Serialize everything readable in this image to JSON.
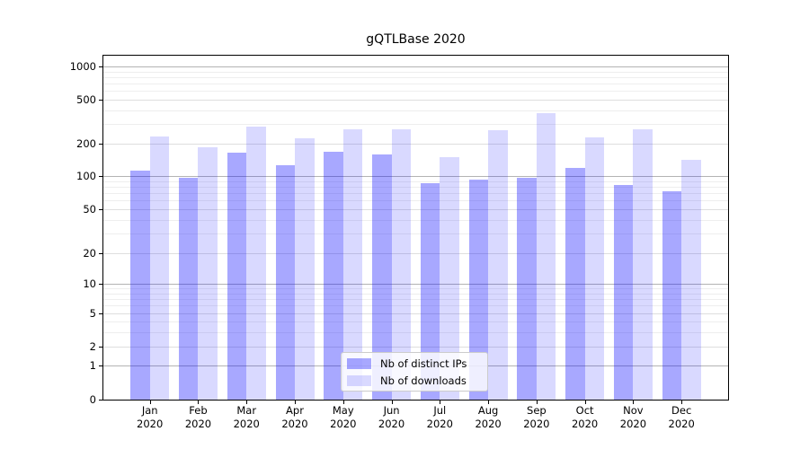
{
  "title": "gQTLBase 2020",
  "chart_data": {
    "type": "bar",
    "title": "gQTLBase 2020",
    "categories": [
      "Jan 2020",
      "Feb 2020",
      "Mar 2020",
      "Apr 2020",
      "May 2020",
      "Jun 2020",
      "Jul 2020",
      "Aug 2020",
      "Sep 2020",
      "Oct 2020",
      "Nov 2020",
      "Dec 2020"
    ],
    "x_tick_months": [
      "Jan",
      "Feb",
      "Mar",
      "Apr",
      "May",
      "Jun",
      "Jul",
      "Aug",
      "Sep",
      "Oct",
      "Nov",
      "Dec"
    ],
    "x_tick_year": "2020",
    "series": [
      {
        "name": "Nb of distinct IPs",
        "color": "rgba(0,0,255,0.34)",
        "values": [
          112,
          97,
          165,
          126,
          167,
          158,
          86,
          92,
          96,
          118,
          83,
          73
        ]
      },
      {
        "name": "Nb of downloads",
        "color": "rgba(0,0,255,0.15)",
        "values": [
          233,
          184,
          285,
          224,
          272,
          268,
          150,
          267,
          380,
          226,
          268,
          142
        ]
      }
    ],
    "yticks": [
      0,
      1,
      2,
      5,
      10,
      20,
      50,
      100,
      200,
      500,
      1000
    ],
    "yscale": "symlog",
    "ylim": [
      0,
      1400
    ],
    "grid": true,
    "legend_position": "lower center",
    "colors": {
      "axis": "#000000",
      "grid_major": "#b3b3b3",
      "grid_minor": "#eeeeee"
    }
  }
}
